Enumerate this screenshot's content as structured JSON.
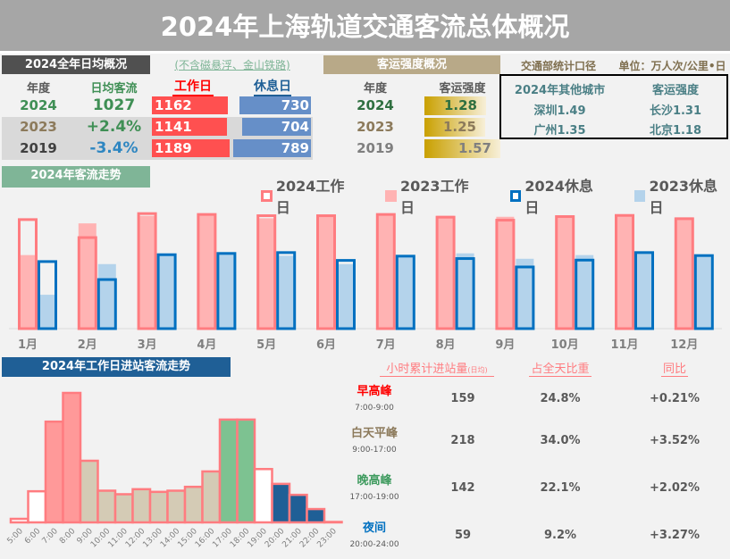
{
  "title": "2024年上海轨道交通客流总体概况",
  "summary": {
    "header": "2024全年日均概况",
    "note": "(不含磁悬浮、金山铁路)",
    "col_year": "年度",
    "col_avg": "日均客流",
    "col_work": "工作日",
    "col_rest": "休息日",
    "rows": [
      {
        "year": "2024",
        "avg": "1027",
        "work": "1162",
        "rest": "730",
        "work_value": 1162,
        "rest_value": 730
      },
      {
        "year": "2023",
        "avg": "+2.4%",
        "work": "1141",
        "rest": "704",
        "work_value": 1141,
        "rest_value": 704
      },
      {
        "year": "2019",
        "avg": "-3.4%",
        "work": "1189",
        "rest": "789",
        "work_value": 1189,
        "rest_value": 789
      }
    ]
  },
  "intensity": {
    "header": "客运强度概况",
    "source": "交通部统计口径",
    "unit": "单位：万人次/公里•日",
    "col_year": "年度",
    "col_value": "客运强度",
    "rows": [
      {
        "year": "2024",
        "value": "1.28"
      },
      {
        "year": "2023",
        "value": "1.25"
      },
      {
        "year": "2019",
        "value": "1.57"
      }
    ],
    "others": {
      "col_city": "2024年其他城市",
      "col_value": "客运强度",
      "cities": [
        "深圳1.49",
        "长沙1.31",
        "广州1.35",
        "北京1.18"
      ]
    }
  },
  "colors": {
    "work2024": "#ff7c80",
    "work2023": "#ffb3b3",
    "rest2024": "#0070c0",
    "rest2023": "#b4d3eb",
    "green": "#7fb597",
    "navy": "#1f5f96",
    "tan": "#b8a988",
    "peak_red": "#ff0000"
  },
  "chart_data": [
    {
      "type": "bar",
      "title": "2024年客流走势",
      "legend_position": "top-right",
      "categories": [
        "1月",
        "2月",
        "3月",
        "4月",
        "5月",
        "6月",
        "7月",
        "8月",
        "9月",
        "10月",
        "11月",
        "12月"
      ],
      "series": [
        {
          "name": "2024工作日",
          "values": [
            1141,
            955,
            1203,
            1194,
            1181,
            1181,
            1194,
            1166,
            1135,
            1172,
            1184,
            1150
          ]
        },
        {
          "name": "2023工作日",
          "values": [
            760,
            1088,
            1166,
            1172,
            1141,
            1156,
            1187,
            1166,
            1156,
            1172,
            1178,
            1150
          ]
        },
        {
          "name": "2024休息日",
          "values": [
            707,
            521,
            778,
            791,
            800,
            719,
            763,
            738,
            651,
            722,
            800,
            769
          ]
        },
        {
          "name": "2023休息日",
          "values": [
            350,
            667,
            753,
            778,
            753,
            667,
            753,
            778,
            722,
            760,
            778,
            747
          ]
        }
      ]
    },
    {
      "type": "bar",
      "title": "2024年工作日进站客流走势",
      "categories": [
        "5:00",
        "6:00",
        "7:00",
        "8:00",
        "9:00",
        "10:00",
        "11:00",
        "12:00",
        "13:00",
        "14:00",
        "15:00",
        "16:00",
        "17:00",
        "18:00",
        "19:00",
        "20:00",
        "21:00",
        "22:00",
        "23:00"
      ],
      "values": [
        12,
        105,
        340,
        437,
        208,
        107,
        95,
        112,
        103,
        107,
        120,
        172,
        347,
        347,
        180,
        130,
        93,
        45,
        0
      ]
    }
  ],
  "periods": {
    "col_volume": "小时累计进站量",
    "col_volume_note": "(日均)",
    "col_share": "占全天比重",
    "col_yoy": "同比",
    "rows": [
      {
        "name": "早高峰",
        "time": "7:00-9:00",
        "volume": "159",
        "share": "24.8%",
        "yoy": "+0.21%",
        "color": "#ff0000"
      },
      {
        "name": "白天平峰",
        "time": "9:00-17:00",
        "volume": "218",
        "share": "34.0%",
        "yoy": "+3.52%",
        "color": "#8c7a5b"
      },
      {
        "name": "晚高峰",
        "time": "17:00-19:00",
        "volume": "142",
        "share": "22.1%",
        "yoy": "+2.02%",
        "color": "#3f9b5f"
      },
      {
        "name": "夜间",
        "time": "20:00-24:00",
        "volume": "59",
        "share": "9.2%",
        "yoy": "+3.27%",
        "color": "#0070c0"
      }
    ]
  }
}
